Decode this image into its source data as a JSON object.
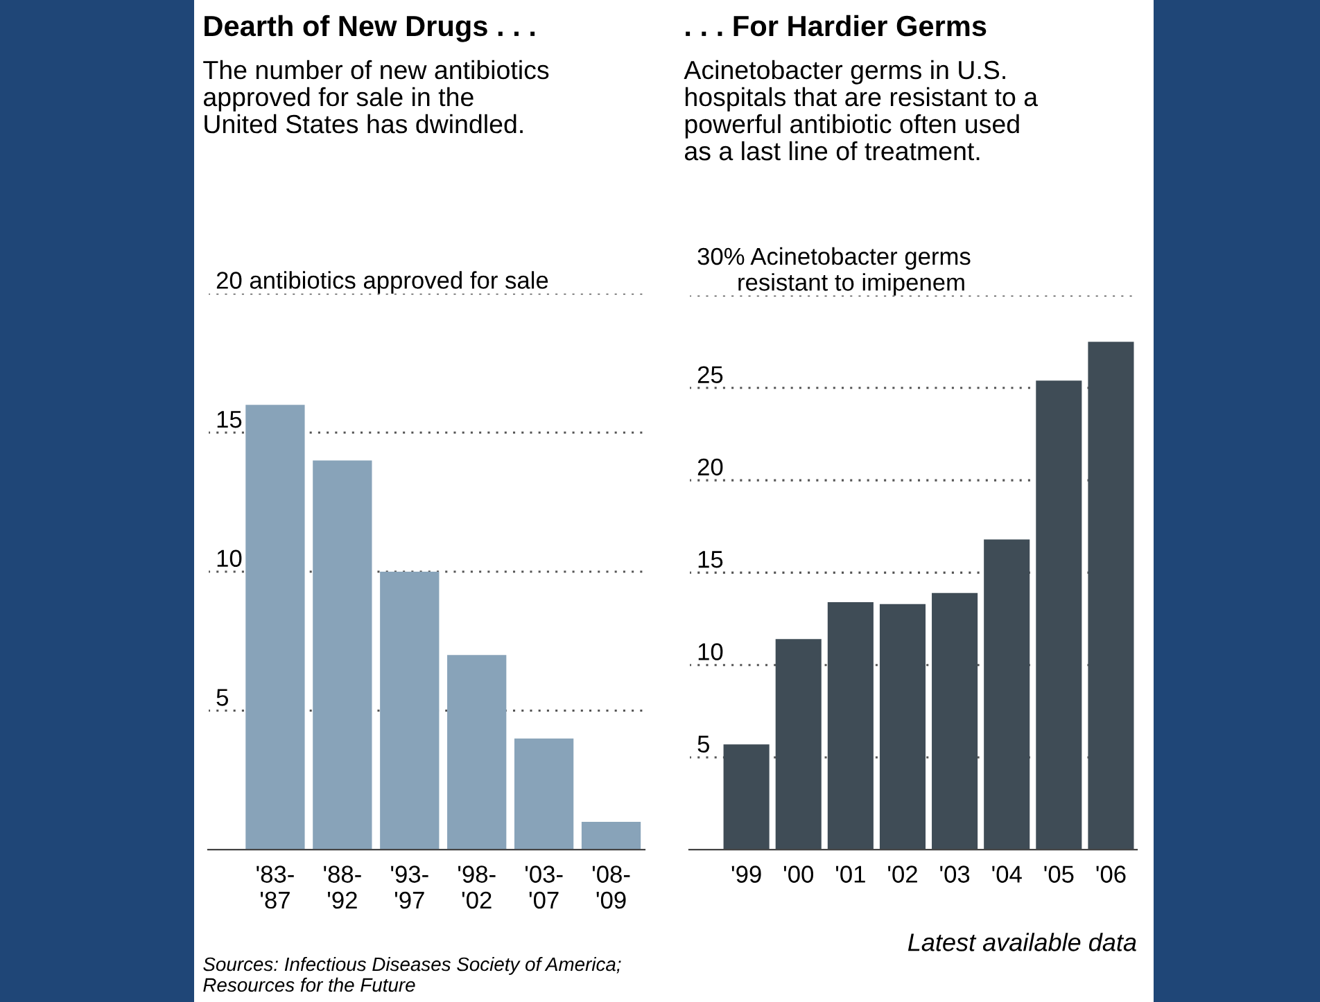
{
  "chart_data": [
    {
      "type": "bar",
      "title": "Dearth of New Drugs . . .",
      "subtitle": "The number of new antibiotics\napproved for sale in the\nUnited States has dwindled.",
      "categories": [
        "'83-\n'87",
        "'88-\n'92",
        "'93-\n'97",
        "'98-\n'02",
        "'03-\n'07",
        "'08-\n'09"
      ],
      "values": [
        16,
        14,
        10,
        7,
        4,
        1
      ],
      "color": "#88a3b9",
      "ylim": [
        0,
        20
      ],
      "yticks": [
        5,
        10,
        15,
        {
          "value": 20,
          "label": "20 antibiotics approved for sale"
        }
      ],
      "grid": "y",
      "annotations": [
        "Sources: Infectious Diseases Society of America;\nResources for the Future"
      ]
    },
    {
      "type": "bar",
      "title": ". . . For Hardier Germs",
      "subtitle": "Acinetobacter germs in U.S.\nhospitals that are resistant to a\npowerful antibiotic often used\nas a last line of treatment.",
      "categories": [
        "'99",
        "'00",
        "'01",
        "'02",
        "'03",
        "'04",
        "'05",
        "'06"
      ],
      "values": [
        5.7,
        11.4,
        13.4,
        13.3,
        13.9,
        16.8,
        25.4,
        27.5
      ],
      "color": "#3f4c56",
      "ylim": [
        0,
        30
      ],
      "yticks": [
        5,
        10,
        15,
        20,
        25,
        {
          "value": 30,
          "label": "30% Acinetobacter germs\n      resistant to imipenem"
        }
      ],
      "grid": "y",
      "annotations": [
        "Latest available data"
      ]
    }
  ]
}
